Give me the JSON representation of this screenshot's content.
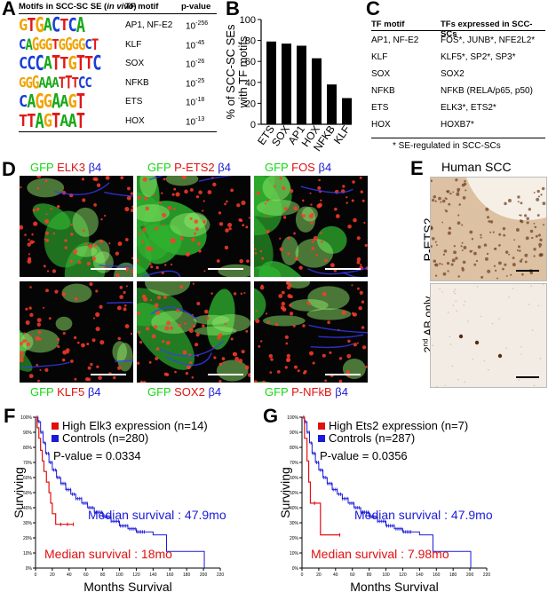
{
  "panel_letters": [
    "A",
    "B",
    "C",
    "D",
    "E",
    "F",
    "G"
  ],
  "panelA": {
    "headers": [
      "Motifs in SCC-SC SE (in vivo)",
      "TF motif",
      "p-value"
    ],
    "rows": [
      {
        "motif": "GTGACTCA",
        "tf": "AP1, NF-E2",
        "p_base": "10",
        "p_exp": "-256"
      },
      {
        "motif": "CAGGGTGGGGCT",
        "tf": "KLF",
        "p_base": "10",
        "p_exp": "-45"
      },
      {
        "motif": "CCCATTGTTC",
        "tf": "SOX",
        "p_base": "10",
        "p_exp": "-26"
      },
      {
        "motif": "GGGAAATTTCC",
        "tf": "NFKB",
        "p_base": "10",
        "p_exp": "-25"
      },
      {
        "motif": "CAGGAAGT",
        "tf": "ETS",
        "p_base": "10",
        "p_exp": "-18"
      },
      {
        "motif": "TTAGTAAT",
        "tf": "HOX",
        "p_base": "10",
        "p_exp": "-13"
      }
    ]
  },
  "chart_data": {
    "type": "bar",
    "categories": [
      "ETS",
      "SOX",
      "AP1",
      "HOX",
      "NFKB",
      "KLF"
    ],
    "values": [
      79,
      77,
      75,
      63,
      38,
      25
    ],
    "ylabel": "% of SCC-SC SEs with TF motifs",
    "ylim": [
      0,
      100
    ],
    "yticks": [
      0,
      20,
      40,
      60,
      80,
      100
    ]
  },
  "panelC": {
    "headers": [
      "TF motif",
      "TFs expressed in SCC-SCs"
    ],
    "rows": [
      {
        "tf": "AP1, NF-E2",
        "expr": "FOS*, JUNB*, NFE2L2*"
      },
      {
        "tf": "KLF",
        "expr": "KLF5*, SP2*, SP3*"
      },
      {
        "tf": "SOX",
        "expr": "SOX2"
      },
      {
        "tf": "NFKB",
        "expr": "NFKB (RELA/p65, p50)"
      },
      {
        "tf": "ETS",
        "expr": "ELK3*, ETS2*"
      },
      {
        "tf": "HOX",
        "expr": "HOXB7*"
      }
    ],
    "footnote": "* SE-regulated in SCC-SCs"
  },
  "panelD": {
    "gfp": "GFP",
    "b4": "β4",
    "markers": [
      "ELK3",
      "P-ETS2",
      "FOS",
      "KLF5",
      "SOX2",
      "P-NFkB"
    ]
  },
  "panelE": {
    "title": "Human SCC",
    "top_label": "P-ETS2",
    "bottom_label_base": "2",
    "bottom_label_sup": "nd",
    "bottom_label_rest": " AB only"
  },
  "panelF": {
    "legend_high": "High Elk3 expression (n=14)",
    "legend_ctrl": "Controls (n=280)",
    "pvalue": "P-value = 0.0334",
    "median_ctrl": "Median survival : 47.9mo",
    "median_high": "Median survival : 18mo",
    "xlabel": "Months Survival",
    "ylabel": "Surviving",
    "xticks": [
      "0",
      "20",
      "40",
      "60",
      "80",
      "100",
      "120",
      "140",
      "160",
      "180",
      "200",
      "220"
    ],
    "yticks": [
      "100%",
      "90%",
      "80%",
      "70%",
      "60%",
      "50%",
      "40%",
      "30%",
      "20%",
      "10%",
      "0%"
    ]
  },
  "panelG": {
    "legend_high": "High Ets2 expression (n=7)",
    "legend_ctrl": "Controls (n=287)",
    "pvalue": "P-value = 0.0356",
    "median_ctrl": "Median survival : 47.9mo",
    "median_high": "Median survival : 7.98mo",
    "xlabel": "Months Survival",
    "ylabel": "Surviving",
    "xticks": [
      "0",
      "20",
      "40",
      "60",
      "80",
      "100",
      "120",
      "140",
      "160",
      "180",
      "200",
      "220"
    ],
    "yticks": [
      "100%",
      "90%",
      "80%",
      "70%",
      "60%",
      "50%",
      "40%",
      "30%",
      "20%",
      "10%",
      "0%"
    ]
  },
  "colors": {
    "red": "#e01010",
    "blue": "#1a1ad8",
    "green": "#17d617"
  }
}
